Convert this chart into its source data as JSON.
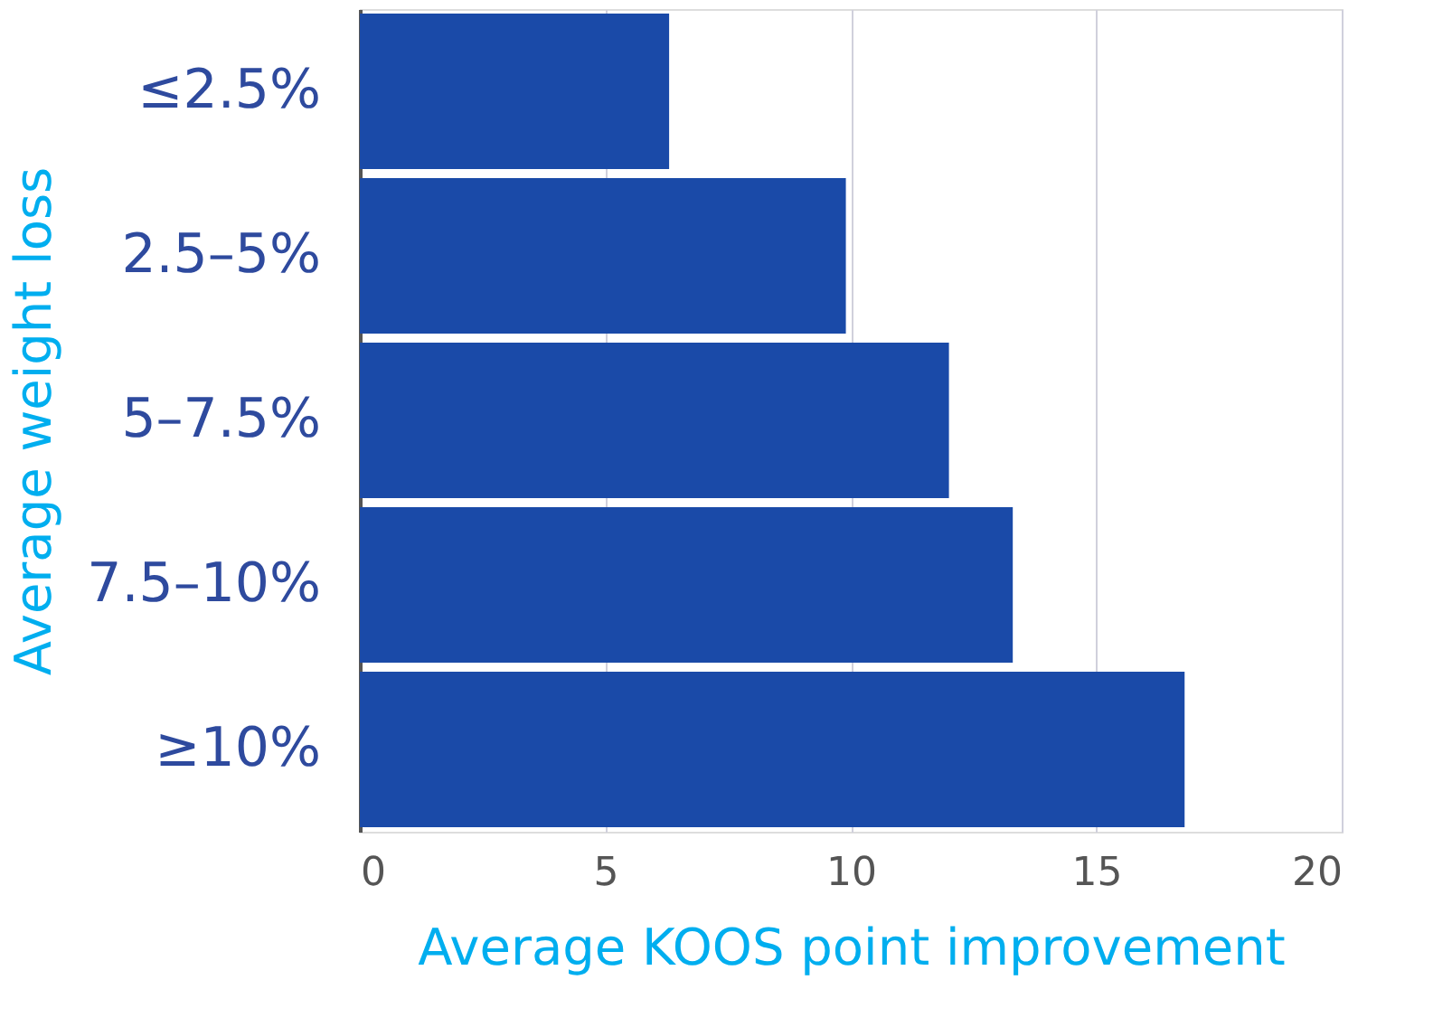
{
  "chart_data": {
    "type": "bar",
    "orientation": "horizontal",
    "categories": [
      "≤2.5%",
      "2.5–5%",
      "5–7.5%",
      "7.5–10%",
      "≥10%"
    ],
    "values": [
      6.3,
      9.9,
      12.0,
      13.3,
      16.8
    ],
    "color": "#1a4aa8",
    "xlabel": "Average KOOS point improvement",
    "ylabel": "Average weight loss",
    "xlim": [
      0,
      20
    ],
    "xticks": [
      0,
      5,
      10,
      15,
      20
    ],
    "grid": "x"
  }
}
